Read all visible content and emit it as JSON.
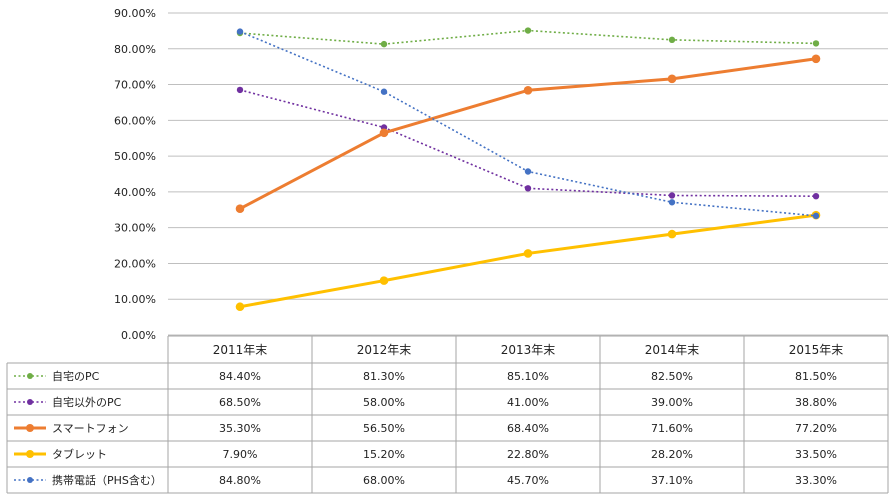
{
  "chart_data": {
    "type": "line",
    "categories": [
      "2011年末",
      "2012年末",
      "2013年末",
      "2014年末",
      "2015年末"
    ],
    "ylim": [
      0,
      90
    ],
    "yticks": [
      "0.00%",
      "10.00%",
      "20.00%",
      "30.00%",
      "40.00%",
      "50.00%",
      "60.00%",
      "70.00%",
      "80.00%",
      "90.00%"
    ],
    "grid": true,
    "legend": "data-table-left",
    "series": [
      {
        "name": "自宅のPC",
        "values": [
          84.4,
          81.3,
          85.1,
          82.5,
          81.5
        ],
        "labels": [
          "84.40%",
          "81.30%",
          "85.10%",
          "82.50%",
          "81.50%"
        ],
        "color": "#6fad46",
        "line_style": "dotted"
      },
      {
        "name": "自宅以外のPC",
        "values": [
          68.5,
          58.0,
          41.0,
          39.0,
          38.8
        ],
        "labels": [
          "68.50%",
          "58.00%",
          "41.00%",
          "39.00%",
          "38.80%"
        ],
        "color": "#7030a0",
        "line_style": "dotted"
      },
      {
        "name": "スマートフォン",
        "values": [
          35.3,
          56.5,
          68.4,
          71.6,
          77.2
        ],
        "labels": [
          "35.30%",
          "56.50%",
          "68.40%",
          "71.60%",
          "77.20%"
        ],
        "color": "#ed7d31",
        "line_style": "solid"
      },
      {
        "name": "タブレット",
        "values": [
          7.9,
          15.2,
          22.8,
          28.2,
          33.5
        ],
        "labels": [
          "7.90%",
          "15.20%",
          "22.80%",
          "28.20%",
          "33.50%"
        ],
        "color": "#ffc000",
        "line_style": "solid"
      },
      {
        "name": "携帯電話（PHS含む）",
        "values": [
          84.8,
          68.0,
          45.7,
          37.1,
          33.3
        ],
        "labels": [
          "84.80%",
          "68.00%",
          "45.70%",
          "37.10%",
          "33.30%"
        ],
        "color": "#4472c4",
        "line_style": "dotted"
      }
    ]
  }
}
